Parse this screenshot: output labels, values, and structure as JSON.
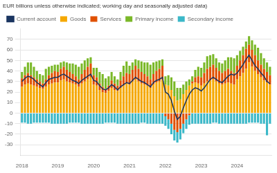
{
  "chart_data": {
    "type": "bar",
    "title": "EUR billions unless otherwise indicated; working day and seasonally adjusted data)",
    "categories": [
      "2018",
      null,
      null,
      null,
      null,
      null,
      null,
      null,
      null,
      null,
      null,
      null,
      "2019",
      null,
      null,
      null,
      null,
      null,
      null,
      null,
      null,
      null,
      null,
      null,
      "2020",
      null,
      null,
      null,
      null,
      null,
      null,
      null,
      null,
      null,
      null,
      null,
      "2021",
      null,
      null,
      null,
      null,
      null,
      null,
      null,
      null,
      null,
      null,
      null,
      "2022",
      null,
      null,
      null,
      null,
      null,
      null,
      null,
      null,
      null,
      null,
      null,
      "2023",
      null,
      null,
      null,
      null,
      null,
      null,
      null,
      null,
      null,
      null,
      null,
      "2024",
      null,
      null,
      null,
      null,
      null,
      null,
      null,
      null,
      null,
      null,
      null
    ],
    "series": [
      {
        "name": "Current account",
        "type": "line",
        "color": "#1A3560",
        "values": [
          30,
          33,
          35,
          34,
          32,
          29,
          27,
          25,
          29,
          32,
          33,
          34,
          34,
          36,
          37,
          35,
          33,
          31,
          30,
          28,
          31,
          33,
          35,
          37,
          31,
          30,
          26,
          23,
          22,
          24,
          27,
          25,
          22,
          25,
          27,
          29,
          28,
          31,
          34,
          32,
          30,
          29,
          27,
          25,
          29,
          31,
          32,
          34,
          20,
          18,
          12,
          2,
          -6,
          -3,
          5,
          12,
          18,
          22,
          24,
          23,
          21,
          24,
          28,
          32,
          34,
          32,
          30,
          29,
          32,
          35,
          37,
          36,
          38,
          42,
          46,
          51,
          55,
          50,
          45,
          42,
          38,
          35,
          30,
          28
        ]
      },
      {
        "name": "Goods",
        "type": "bar",
        "color": "#F5A800",
        "values": [
          25,
          27,
          28,
          27,
          26,
          25,
          24,
          23,
          25,
          27,
          28,
          29,
          29,
          31,
          32,
          30,
          29,
          28,
          27,
          25,
          28,
          30,
          32,
          34,
          27,
          26,
          22,
          20,
          19,
          21,
          24,
          22,
          21,
          24,
          26,
          28,
          27,
          30,
          32,
          30,
          28,
          27,
          26,
          24,
          27,
          29,
          30,
          32,
          27,
          26,
          22,
          16,
          12,
          13,
          18,
          22,
          26,
          28,
          29,
          28,
          26,
          28,
          30,
          31,
          32,
          30,
          28,
          27,
          28,
          29,
          28,
          27,
          32,
          35,
          38,
          42,
          48,
          44,
          40,
          37,
          34,
          31,
          29,
          27
        ]
      },
      {
        "name": "Services",
        "type": "bar",
        "color": "#E05000",
        "values": [
          8,
          9,
          10,
          9,
          8,
          7,
          6,
          5,
          7,
          9,
          10,
          11,
          10,
          11,
          12,
          11,
          10,
          9,
          8,
          7,
          9,
          11,
          12,
          13,
          9,
          8,
          6,
          5,
          4,
          5,
          7,
          6,
          5,
          7,
          9,
          10,
          10,
          11,
          13,
          12,
          11,
          10,
          9,
          8,
          10,
          11,
          12,
          13,
          -3,
          -6,
          -10,
          -16,
          -18,
          -15,
          -10,
          -6,
          -2,
          2,
          5,
          7,
          8,
          10,
          12,
          13,
          14,
          13,
          12,
          11,
          12,
          13,
          12,
          11,
          13,
          15,
          17,
          19,
          17,
          16,
          15,
          13,
          12,
          11,
          10,
          9
        ]
      },
      {
        "name": "Primary income",
        "type": "bar",
        "color": "#7AB828",
        "values": [
          6,
          8,
          10,
          12,
          10,
          8,
          7,
          8,
          10,
          8,
          7,
          6,
          7,
          6,
          5,
          7,
          8,
          10,
          11,
          12,
          10,
          9,
          8,
          6,
          7,
          9,
          11,
          12,
          10,
          9,
          8,
          7,
          6,
          8,
          10,
          11,
          8,
          7,
          6,
          8,
          10,
          11,
          13,
          14,
          11,
          9,
          8,
          6,
          8,
          10,
          12,
          14,
          12,
          11,
          9,
          8,
          6,
          5,
          7,
          9,
          9,
          10,
          12,
          11,
          10,
          9,
          8,
          9,
          10,
          11,
          13,
          14,
          10,
          9,
          8,
          7,
          8,
          9,
          10,
          12,
          11,
          10,
          9,
          8
        ]
      },
      {
        "name": "Secondary income",
        "type": "bar",
        "color": "#3BB8C8",
        "values": [
          -9,
          -9,
          -10,
          -10,
          -9,
          -9,
          -9,
          -9,
          -9,
          -9,
          -10,
          -10,
          -10,
          -10,
          -10,
          -10,
          -9,
          -9,
          -9,
          -9,
          -10,
          -10,
          -10,
          -10,
          -10,
          -10,
          -10,
          -10,
          -9,
          -9,
          -9,
          -9,
          -10,
          -10,
          -10,
          -10,
          -10,
          -10,
          -10,
          -10,
          -9,
          -9,
          -10,
          -10,
          -10,
          -10,
          -10,
          -10,
          -9,
          -9,
          -10,
          -10,
          -10,
          -10,
          -9,
          -9,
          -9,
          -10,
          -10,
          -10,
          -10,
          -10,
          -10,
          -10,
          -9,
          -9,
          -10,
          -10,
          -10,
          -10,
          -10,
          -10,
          -10,
          -10,
          -10,
          -10,
          -9,
          -9,
          -9,
          -9,
          -10,
          -10,
          -21,
          -10
        ]
      }
    ],
    "stacked": true,
    "ylim": [
      -40,
      80
    ],
    "yticks": [
      -30,
      -20,
      -10,
      0,
      10,
      20,
      30,
      40,
      50,
      60,
      70
    ],
    "grid": "y",
    "legend": "top"
  }
}
